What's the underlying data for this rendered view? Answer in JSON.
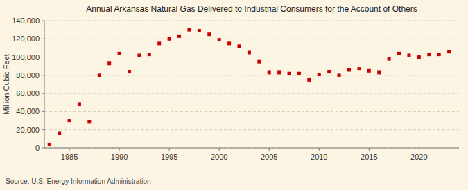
{
  "chart_data": {
    "type": "scatter",
    "title": "Annual Arkansas Natural Gas Delivered to Industrial Consumers for the Account of Others",
    "ylabel": "Million Cubic Feet",
    "source": "Source: U.S. Energy Information Administration",
    "color": "#cc0000",
    "marker": "square",
    "grid": true,
    "x": [
      1983,
      1984,
      1985,
      1986,
      1987,
      1988,
      1989,
      1990,
      1991,
      1992,
      1993,
      1994,
      1995,
      1996,
      1997,
      1998,
      1999,
      2000,
      2001,
      2002,
      2003,
      2004,
      2005,
      2006,
      2007,
      2008,
      2009,
      2010,
      2011,
      2012,
      2013,
      2014,
      2015,
      2016,
      2017,
      2018,
      2019,
      2020,
      2021,
      2022,
      2023
    ],
    "values": [
      3500,
      16000,
      30000,
      48000,
      29000,
      80000,
      93000,
      104000,
      84000,
      102000,
      103000,
      115000,
      120000,
      123000,
      130000,
      129000,
      125000,
      119000,
      115000,
      112000,
      105000,
      95000,
      83000,
      83000,
      82000,
      82000,
      75000,
      81000,
      84000,
      80000,
      86000,
      87000,
      85000,
      83000,
      98000,
      104000,
      102000,
      100000,
      103000,
      103000,
      106000
    ],
    "xlim": [
      1982.5,
      2024
    ],
    "xticks": [
      1985,
      1990,
      1995,
      2000,
      2005,
      2010,
      2015,
      2020
    ],
    "ylim": [
      0,
      140000
    ],
    "yticks": [
      0,
      {
        "value": 20000,
        "label": "20,000"
      },
      {
        "value": 40000,
        "label": "40,000"
      },
      {
        "value": 60000,
        "label": "60,000"
      },
      {
        "value": 80000,
        "label": "80,000"
      },
      {
        "value": 100000,
        "label": "100,000"
      },
      {
        "value": 120000,
        "label": "120,000"
      },
      {
        "value": 140000,
        "label": "140,000"
      }
    ]
  }
}
